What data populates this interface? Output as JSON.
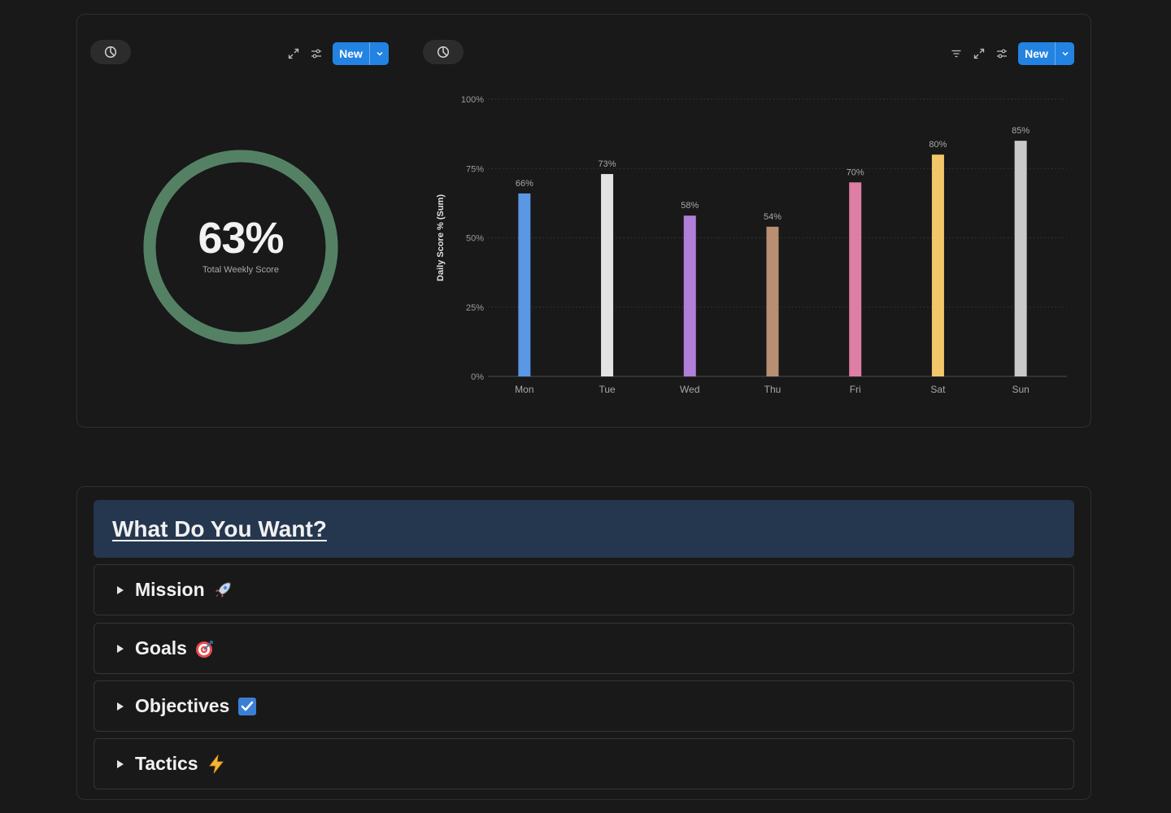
{
  "toolbar_left": {
    "new_label": "New"
  },
  "toolbar_right": {
    "new_label": "New"
  },
  "summary": {
    "value": "63%",
    "label": "Total Weekly Score",
    "progress": 63,
    "ring_color": "#548164"
  },
  "chart_data": {
    "type": "bar",
    "categories": [
      "Mon",
      "Tue",
      "Wed",
      "Thu",
      "Fri",
      "Sat",
      "Sun"
    ],
    "values": [
      66,
      73,
      58,
      54,
      70,
      80,
      85
    ],
    "data_labels": [
      "66%",
      "73%",
      "58%",
      "54%",
      "70%",
      "80%",
      "85%"
    ],
    "colors": [
      "#5a97e4",
      "#e3e3e3",
      "#b07fd8",
      "#b88f73",
      "#de7ea4",
      "#f1c76a",
      "#c9c9c9"
    ],
    "ylabel": "Daily Score % (Sum)",
    "ylim": [
      0,
      100
    ],
    "yticks": [
      0,
      25,
      50,
      75,
      100
    ],
    "ytick_labels": [
      "0%",
      "25%",
      "50%",
      "75%",
      "100%"
    ],
    "grid": true
  },
  "section": {
    "title": "What Do You Want?",
    "toggles": [
      {
        "label": "Mission",
        "icon": "rocket-icon"
      },
      {
        "label": "Goals",
        "icon": "target-icon"
      },
      {
        "label": "Objectives",
        "icon": "checkbox-icon"
      },
      {
        "label": "Tactics",
        "icon": "lightning-icon"
      }
    ]
  }
}
